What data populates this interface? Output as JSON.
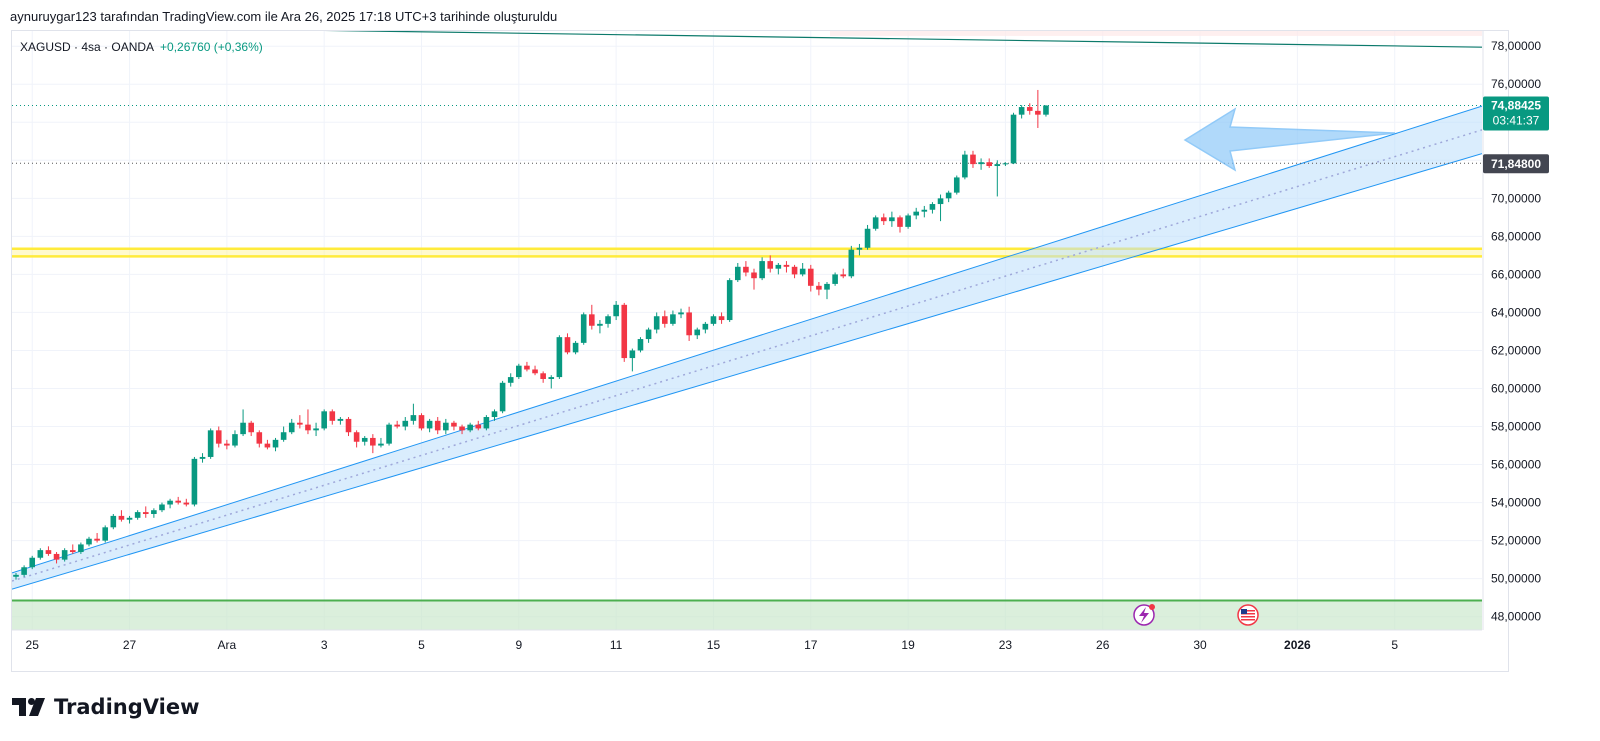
{
  "header": {
    "attribution": "aynuruygar123 tarafından TradingView.com ile Ara 26, 2025 17:18 UTC+3 tarihinde oluşturuldu"
  },
  "legend": {
    "symbol_line": "XAGUSD · 4sa · OANDA",
    "change": "+0,26760 (+0,36%)"
  },
  "footer": {
    "brand": "TradingView"
  },
  "colors": {
    "up": "#089981",
    "down": "#f23645",
    "channel": "#2196f3",
    "channel_fill": "#bbdefb",
    "support_band": "#ffeb3b",
    "bottom_band": "#4caf50",
    "arrow": "#90caf9"
  },
  "icons": [
    "lightning-event-icon",
    "us-flag-event-icon",
    "tradingview-logo-icon"
  ],
  "chart_data": {
    "type": "candlestick",
    "symbol": "XAGUSD",
    "interval": "4sa",
    "exchange": "OANDA",
    "ylim": [
      47.3,
      78.8
    ],
    "y_ticks": [
      "78,00000",
      "76,00000",
      "74,00000",
      "72,00000",
      "70,00000",
      "68,00000",
      "66,00000",
      "64,00000",
      "62,00000",
      "60,00000",
      "58,00000",
      "56,00000",
      "54,00000",
      "52,00000",
      "50,00000",
      "48,00000"
    ],
    "y_tick_values": [
      78,
      76,
      74,
      72,
      70,
      68,
      66,
      64,
      62,
      60,
      58,
      56,
      54,
      52,
      50,
      48
    ],
    "x_ticks": [
      {
        "label": "25",
        "idx": 2
      },
      {
        "label": "27",
        "idx": 14
      },
      {
        "label": "Ara",
        "idx": 26
      },
      {
        "label": "3",
        "idx": 38
      },
      {
        "label": "5",
        "idx": 50
      },
      {
        "label": "9",
        "idx": 62
      },
      {
        "label": "11",
        "idx": 74
      },
      {
        "label": "15",
        "idx": 86
      },
      {
        "label": "17",
        "idx": 98
      },
      {
        "label": "19",
        "idx": 110
      },
      {
        "label": "23",
        "idx": 122
      },
      {
        "label": "26",
        "idx": 134
      },
      {
        "label": "30",
        "idx": 146
      },
      {
        "label": "2026",
        "idx": 158
      },
      {
        "label": "5",
        "idx": 170
      }
    ],
    "price_label": {
      "value": 74.88425,
      "text": "74,88425",
      "countdown": "03:41:37"
    },
    "marker_label": {
      "value": 71.848,
      "text": "71,84800"
    },
    "candles": [
      [
        50.1,
        50.3,
        49.95,
        50.2
      ],
      [
        50.2,
        50.7,
        50.1,
        50.6
      ],
      [
        50.6,
        51.2,
        50.5,
        51.1
      ],
      [
        51.1,
        51.6,
        51.0,
        51.5
      ],
      [
        51.5,
        51.7,
        51.2,
        51.3
      ],
      [
        51.3,
        51.4,
        50.8,
        51.0
      ],
      [
        51.0,
        51.6,
        50.9,
        51.5
      ],
      [
        51.5,
        51.8,
        51.3,
        51.4
      ],
      [
        51.4,
        51.9,
        51.3,
        51.8
      ],
      [
        51.8,
        52.2,
        51.7,
        52.1
      ],
      [
        52.1,
        52.4,
        51.9,
        52.0
      ],
      [
        52.0,
        52.8,
        51.9,
        52.7
      ],
      [
        52.7,
        53.4,
        52.6,
        53.3
      ],
      [
        53.3,
        53.6,
        53.0,
        53.1
      ],
      [
        53.1,
        53.3,
        52.9,
        53.2
      ],
      [
        53.2,
        53.6,
        53.1,
        53.5
      ],
      [
        53.5,
        53.8,
        53.2,
        53.4
      ],
      [
        53.4,
        53.7,
        53.2,
        53.6
      ],
      [
        53.6,
        54.0,
        53.5,
        53.9
      ],
      [
        53.9,
        54.2,
        53.7,
        54.1
      ],
      [
        54.1,
        54.3,
        53.9,
        54.0
      ],
      [
        54.0,
        54.2,
        53.8,
        53.9
      ],
      [
        53.9,
        56.4,
        53.8,
        56.3
      ],
      [
        56.3,
        56.6,
        56.1,
        56.4
      ],
      [
        56.4,
        57.9,
        56.3,
        57.8
      ],
      [
        57.8,
        58.0,
        56.9,
        57.1
      ],
      [
        57.1,
        57.3,
        56.8,
        57.0
      ],
      [
        57.0,
        57.8,
        56.9,
        57.6
      ],
      [
        57.6,
        58.9,
        57.5,
        58.2
      ],
      [
        58.2,
        58.3,
        57.5,
        57.7
      ],
      [
        57.7,
        57.8,
        56.9,
        57.1
      ],
      [
        57.1,
        57.3,
        56.8,
        56.9
      ],
      [
        56.9,
        57.4,
        56.7,
        57.3
      ],
      [
        57.3,
        58.0,
        57.2,
        57.7
      ],
      [
        57.7,
        58.4,
        57.6,
        58.2
      ],
      [
        58.2,
        58.6,
        57.9,
        58.1
      ],
      [
        58.1,
        58.9,
        57.6,
        57.8
      ],
      [
        57.8,
        58.2,
        57.5,
        57.9
      ],
      [
        57.9,
        58.9,
        57.8,
        58.8
      ],
      [
        58.8,
        58.9,
        58.1,
        58.3
      ],
      [
        58.3,
        58.5,
        58.1,
        58.4
      ],
      [
        58.4,
        58.5,
        57.5,
        57.7
      ],
      [
        57.7,
        57.8,
        56.9,
        57.2
      ],
      [
        57.2,
        57.5,
        57.0,
        57.4
      ],
      [
        57.4,
        57.6,
        56.6,
        57.0
      ],
      [
        57.0,
        57.4,
        56.9,
        57.1
      ],
      [
        57.1,
        58.2,
        57.0,
        58.1
      ],
      [
        58.1,
        58.3,
        57.9,
        58.0
      ],
      [
        58.0,
        58.5,
        57.8,
        58.3
      ],
      [
        58.3,
        59.2,
        58.1,
        58.6
      ],
      [
        58.6,
        58.7,
        57.8,
        57.9
      ],
      [
        57.9,
        58.4,
        57.7,
        58.3
      ],
      [
        58.3,
        58.5,
        57.6,
        57.8
      ],
      [
        57.8,
        58.4,
        57.6,
        58.2
      ],
      [
        58.2,
        58.3,
        57.8,
        58.0
      ],
      [
        58.0,
        58.1,
        57.6,
        57.8
      ],
      [
        57.8,
        58.2,
        57.7,
        58.1
      ],
      [
        58.1,
        58.3,
        57.8,
        57.9
      ],
      [
        57.9,
        58.6,
        57.8,
        58.5
      ],
      [
        58.5,
        58.9,
        58.3,
        58.8
      ],
      [
        58.8,
        60.4,
        58.7,
        60.3
      ],
      [
        60.3,
        60.8,
        60.1,
        60.6
      ],
      [
        60.6,
        61.3,
        60.5,
        61.2
      ],
      [
        61.2,
        61.4,
        60.9,
        61.0
      ],
      [
        61.0,
        61.2,
        60.7,
        60.8
      ],
      [
        60.8,
        60.9,
        60.3,
        60.5
      ],
      [
        60.5,
        60.7,
        60.0,
        60.6
      ],
      [
        60.6,
        62.8,
        60.5,
        62.7
      ],
      [
        62.7,
        62.9,
        61.8,
        61.9
      ],
      [
        61.9,
        62.5,
        61.8,
        62.4
      ],
      [
        62.4,
        64.0,
        62.3,
        63.9
      ],
      [
        63.9,
        64.4,
        63.1,
        63.3
      ],
      [
        63.3,
        63.6,
        62.9,
        63.4
      ],
      [
        63.4,
        63.9,
        63.2,
        63.8
      ],
      [
        63.8,
        64.6,
        63.6,
        64.4
      ],
      [
        64.4,
        64.5,
        61.4,
        61.6
      ],
      [
        61.6,
        62.1,
        60.9,
        62.0
      ],
      [
        62.0,
        62.7,
        61.9,
        62.6
      ],
      [
        62.6,
        63.2,
        62.4,
        63.1
      ],
      [
        63.1,
        64.0,
        62.9,
        63.8
      ],
      [
        63.8,
        64.1,
        63.2,
        63.4
      ],
      [
        63.4,
        64.1,
        63.3,
        63.9
      ],
      [
        63.9,
        64.2,
        63.7,
        64.0
      ],
      [
        64.0,
        64.3,
        62.5,
        62.8
      ],
      [
        62.8,
        63.2,
        62.6,
        63.1
      ],
      [
        63.1,
        63.5,
        62.9,
        63.4
      ],
      [
        63.4,
        63.9,
        63.3,
        63.8
      ],
      [
        63.8,
        64.0,
        63.4,
        63.6
      ],
      [
        63.6,
        65.8,
        63.5,
        65.7
      ],
      [
        65.7,
        66.6,
        65.6,
        66.4
      ],
      [
        66.4,
        66.7,
        65.9,
        66.1
      ],
      [
        66.1,
        66.3,
        65.2,
        65.8
      ],
      [
        65.8,
        66.9,
        65.7,
        66.7
      ],
      [
        66.7,
        67.0,
        66.1,
        66.3
      ],
      [
        66.3,
        66.6,
        66.0,
        66.5
      ],
      [
        66.5,
        66.7,
        66.1,
        66.4
      ],
      [
        66.4,
        66.5,
        65.8,
        66.0
      ],
      [
        66.0,
        66.6,
        65.9,
        66.3
      ],
      [
        66.3,
        66.5,
        65.1,
        65.4
      ],
      [
        65.4,
        65.6,
        64.9,
        65.2
      ],
      [
        65.2,
        65.6,
        64.7,
        65.5
      ],
      [
        65.5,
        66.1,
        65.4,
        66.0
      ],
      [
        66.0,
        66.3,
        65.8,
        65.9
      ],
      [
        65.9,
        67.5,
        65.8,
        67.3
      ],
      [
        67.3,
        67.6,
        67.0,
        67.4
      ],
      [
        67.4,
        68.6,
        67.3,
        68.4
      ],
      [
        68.4,
        69.1,
        68.3,
        69.0
      ],
      [
        69.0,
        69.2,
        68.6,
        68.8
      ],
      [
        68.8,
        69.3,
        68.5,
        69.0
      ],
      [
        69.0,
        69.1,
        68.2,
        68.5
      ],
      [
        68.5,
        69.2,
        68.4,
        69.1
      ],
      [
        69.1,
        69.5,
        68.9,
        69.3
      ],
      [
        69.3,
        69.6,
        69.0,
        69.4
      ],
      [
        69.4,
        69.8,
        69.2,
        69.7
      ],
      [
        69.7,
        70.2,
        68.8,
        70.0
      ],
      [
        70.0,
        70.4,
        69.8,
        70.3
      ],
      [
        70.3,
        71.2,
        70.2,
        71.1
      ],
      [
        71.1,
        72.5,
        71.0,
        72.3
      ],
      [
        72.3,
        72.5,
        71.6,
        71.8
      ],
      [
        71.8,
        72.1,
        71.5,
        71.9
      ],
      [
        71.9,
        72.1,
        71.6,
        71.7
      ],
      [
        71.7,
        72.0,
        70.1,
        71.8
      ],
      [
        71.8,
        71.9,
        71.7,
        71.84
      ],
      [
        71.84,
        74.5,
        71.8,
        74.4
      ],
      [
        74.4,
        74.9,
        74.2,
        74.8
      ],
      [
        74.8,
        75.0,
        74.4,
        74.6
      ],
      [
        74.6,
        75.7,
        73.7,
        74.4
      ],
      [
        74.4,
        74.9,
        74.3,
        74.88
      ]
    ]
  }
}
